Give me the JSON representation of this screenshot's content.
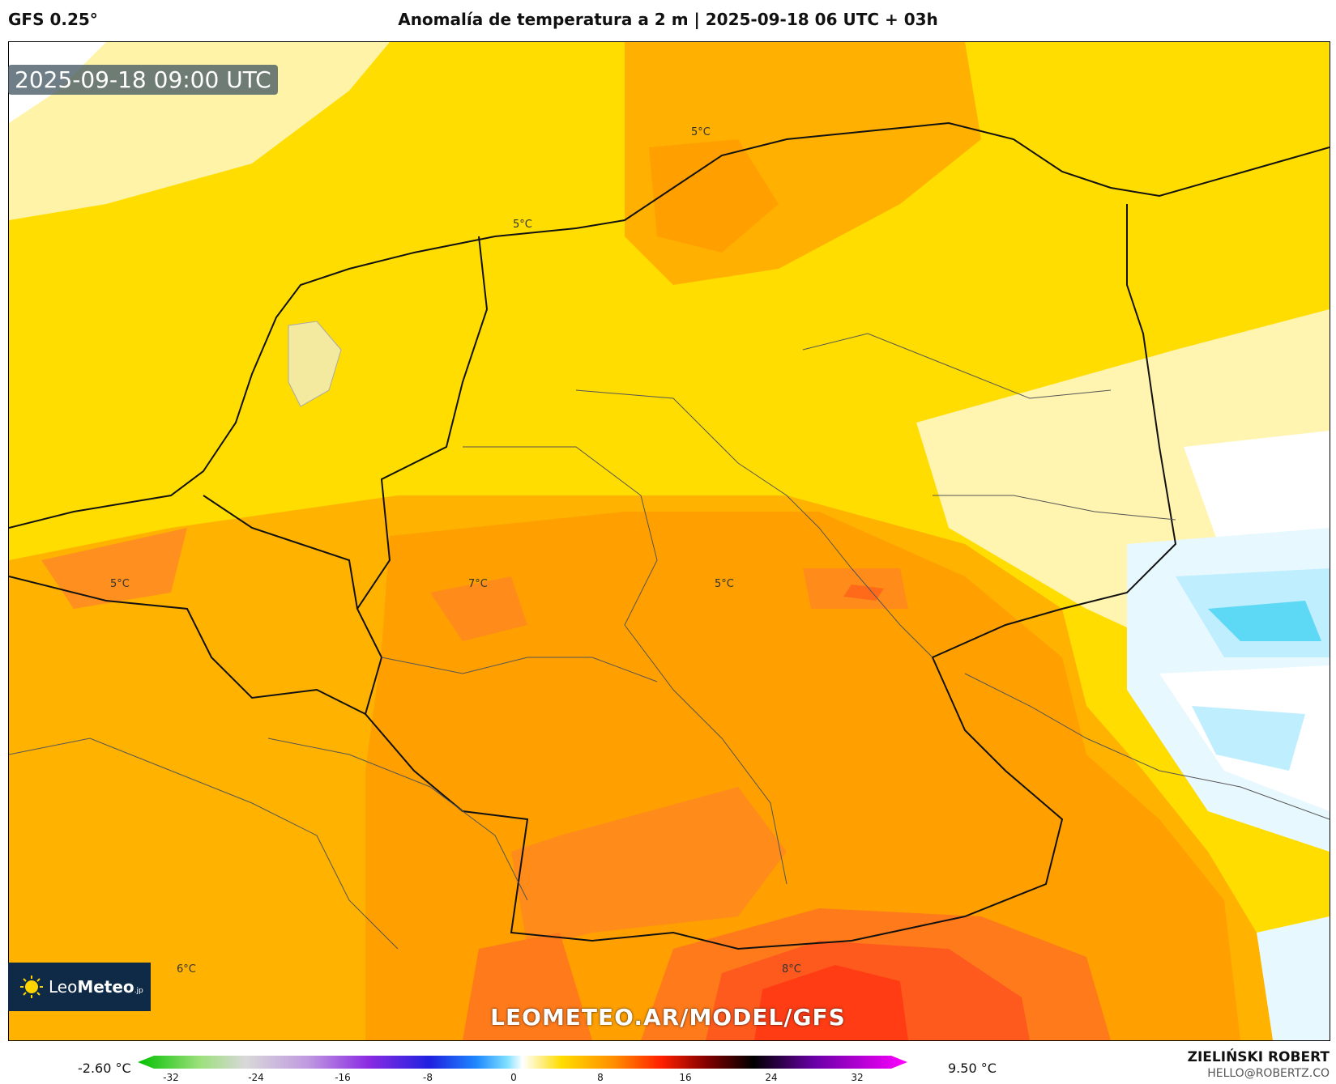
{
  "header": {
    "model": "GFS 0.25°",
    "title": "Anomalía de temperatura a 2 m | 2025-09-18 06 UTC + 03h"
  },
  "map": {
    "valid_time": "2025-09-18 09:00 UTC",
    "contour_labels": [
      "5°C",
      "5°C",
      "5°C",
      "7°C",
      "5°C",
      "6°C",
      "8°C"
    ],
    "watermark": "LEOMETEO.AR/MODEL/GFS",
    "logo": {
      "brand_light": "Leo",
      "brand_bold": "Meteo",
      "suffix": ".jp"
    },
    "colors": {
      "pale_yellow": "#fff6b0",
      "yellow": "#ffdd00",
      "orange": "#ffa500",
      "dark_orange": "#ff8c1a",
      "red_orange": "#ff5a1e",
      "light_blue": "#bfeefe",
      "cyan": "#5dd8f5"
    }
  },
  "colorbar": {
    "min_label": "-2.60 °C",
    "max_label": "9.50 °C",
    "ticks": [
      "-32",
      "-24",
      "-16",
      "-8",
      "0",
      "8",
      "16",
      "24",
      "32"
    ]
  },
  "author": {
    "name": "ZIELIŃSKI ROBERT",
    "email": "HELLO@ROBERTZ.CO"
  }
}
